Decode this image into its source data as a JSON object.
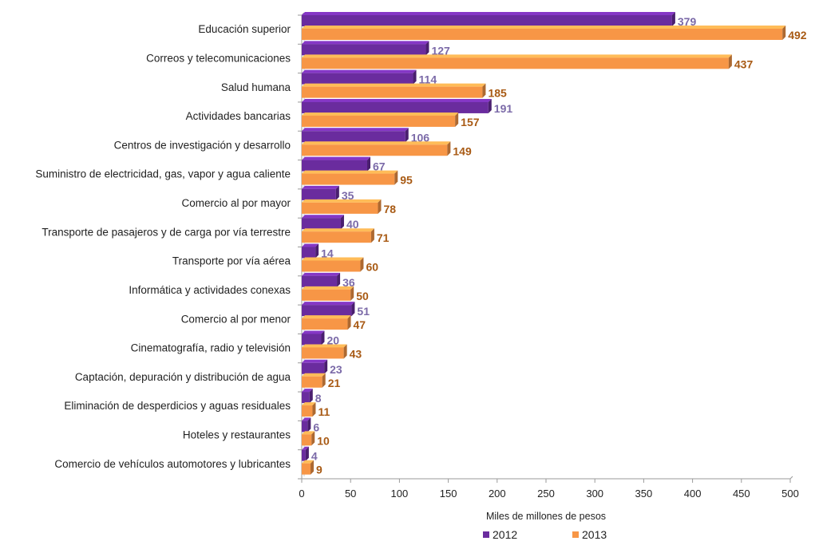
{
  "chart_data": {
    "type": "bar",
    "orientation": "horizontal",
    "categories": [
      "Educación superior",
      "Correos y telecomunicaciones",
      "Salud humana",
      "Actividades bancarias",
      "Centros de investigación y desarrollo",
      "Suministro de electricidad, gas, vapor y agua caliente",
      "Comercio al por mayor",
      "Transporte de pasajeros y de carga por vía terrestre",
      "Transporte por vía aérea",
      "Informática y actividades conexas",
      "Comercio al por menor",
      "Cinematografía, radio y televisión",
      "Captación, depuración y distribución de agua",
      "Eliminación de desperdicios y aguas residuales",
      "Hoteles y restaurantes",
      "Comercio de vehículos automotores y lubricantes"
    ],
    "series": [
      {
        "name": "2012",
        "color": "#6a2c9e",
        "label_color": "#7b6aa8",
        "values": [
          379,
          127,
          114,
          191,
          106,
          67,
          35,
          40,
          14,
          36,
          51,
          20,
          23,
          8,
          6,
          4
        ]
      },
      {
        "name": "2013",
        "color": "#f79646",
        "label_color": "#a85a14",
        "values": [
          492,
          437,
          185,
          157,
          149,
          95,
          78,
          71,
          60,
          50,
          47,
          43,
          21,
          11,
          10,
          9
        ]
      }
    ],
    "xlabel": "Miles de millones de pesos",
    "ylabel": "",
    "xlim": [
      0,
      500
    ],
    "xticks": [
      0,
      50,
      100,
      150,
      200,
      250,
      300,
      350,
      400,
      450,
      500
    ],
    "grid": false,
    "legend_position": "bottom",
    "style": "3d-bars"
  }
}
